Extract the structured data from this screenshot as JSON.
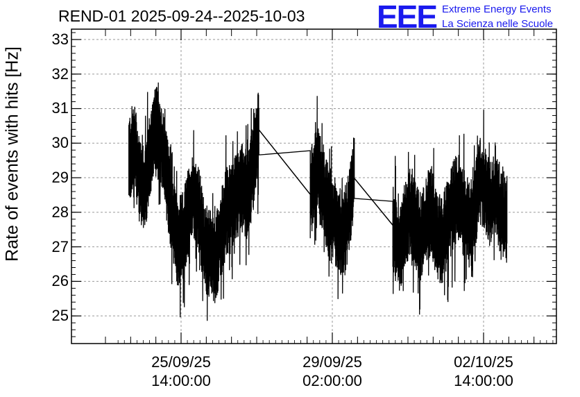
{
  "chart_data": {
    "type": "line",
    "title": "REND-01 2025-09-24--2025-10-03",
    "ylabel": "Rate of events with hits [Hz]",
    "xlabel": "",
    "ylim": [
      24.2,
      33.3
    ],
    "y_ticks": [
      "25",
      "26",
      "27",
      "28",
      "29",
      "30",
      "31",
      "32",
      "33"
    ],
    "x_ticks": [
      {
        "date": "25/09/25",
        "time": "14:00:00"
      },
      {
        "date": "29/09/25",
        "time": "02:00:00"
      },
      {
        "date": "02/10/25",
        "time": "14:00:00"
      }
    ],
    "grid": true,
    "series_color": "#000000",
    "series": [
      {
        "points": [
          [
            "2025-09-24T09:00",
            29.5
          ],
          [
            "2025-09-24T12:00",
            30.0
          ],
          [
            "2025-09-24T15:00",
            29.0
          ],
          [
            "2025-09-24T18:00",
            28.7
          ],
          [
            "2025-09-24T21:00",
            29.7
          ],
          [
            "2025-09-25T00:00",
            30.4
          ],
          [
            "2025-09-25T03:00",
            30.0
          ],
          [
            "2025-09-25T06:00",
            29.0
          ],
          [
            "2025-09-25T09:00",
            28.0
          ],
          [
            "2025-09-25T12:00",
            27.1
          ],
          [
            "2025-09-25T15:00",
            27.3
          ],
          [
            "2025-09-25T18:00",
            28.0
          ],
          [
            "2025-09-25T21:00",
            28.5
          ],
          [
            "2025-09-26T00:00",
            28.0
          ],
          [
            "2025-09-26T03:00",
            27.0
          ],
          [
            "2025-09-26T06:00",
            26.8
          ],
          [
            "2025-09-26T09:00",
            26.6
          ],
          [
            "2025-09-26T12:00",
            27.3
          ],
          [
            "2025-09-26T15:00",
            28.0
          ],
          [
            "2025-09-26T18:00",
            28.2
          ],
          [
            "2025-09-26T21:00",
            28.5
          ],
          [
            "2025-09-27T00:00",
            28.7
          ],
          [
            "2025-09-27T03:00",
            28.5
          ],
          [
            "2025-09-27T06:00",
            29.3
          ],
          [
            "2025-09-27T09:00",
            30.4
          ],
          [
            "2025-09-28T00:00",
            29.3
          ],
          [
            "2025-09-28T14:00",
            28.5
          ],
          [
            "2025-09-28T17:00",
            29.5
          ],
          [
            "2025-09-28T20:00",
            28.8
          ],
          [
            "2025-09-28T23:00",
            28.2
          ],
          [
            "2025-09-29T02:00",
            27.9
          ],
          [
            "2025-09-29T05:00",
            27.6
          ],
          [
            "2025-09-29T08:00",
            27.3
          ],
          [
            "2025-09-29T11:00",
            27.8
          ],
          [
            "2025-09-29T14:00",
            29.0
          ],
          [
            "2025-09-30T00:00",
            28.3
          ],
          [
            "2025-09-30T12:00",
            27.6
          ],
          [
            "2025-09-30T15:00",
            26.8
          ],
          [
            "2025-09-30T18:00",
            27.6
          ],
          [
            "2025-09-30T21:00",
            28.0
          ],
          [
            "2025-10-01T00:00",
            27.6
          ],
          [
            "2025-10-01T03:00",
            27.3
          ],
          [
            "2025-10-01T06:00",
            27.8
          ],
          [
            "2025-10-01T09:00",
            28.1
          ],
          [
            "2025-10-01T12:00",
            27.3
          ],
          [
            "2025-10-01T15:00",
            27.2
          ],
          [
            "2025-10-01T18:00",
            27.7
          ],
          [
            "2025-10-01T21:00",
            28.2
          ],
          [
            "2025-10-02T00:00",
            28.5
          ],
          [
            "2025-10-02T03:00",
            28.0
          ],
          [
            "2025-10-02T06:00",
            27.6
          ],
          [
            "2025-10-02T09:00",
            28.2
          ],
          [
            "2025-10-02T12:00",
            28.9
          ],
          [
            "2025-10-02T15:00",
            28.7
          ],
          [
            "2025-10-02T18:00",
            28.2
          ],
          [
            "2025-10-02T21:00",
            28.5
          ],
          [
            "2025-10-03T00:00",
            28.0
          ],
          [
            "2025-10-03T03:00",
            27.8
          ]
        ],
        "fluctuation_hz": 0.9
      }
    ]
  },
  "logo": {
    "mark": "EEE",
    "line1": "Extreme Energy Events",
    "line2": "La Scienza nelle Scuole"
  }
}
